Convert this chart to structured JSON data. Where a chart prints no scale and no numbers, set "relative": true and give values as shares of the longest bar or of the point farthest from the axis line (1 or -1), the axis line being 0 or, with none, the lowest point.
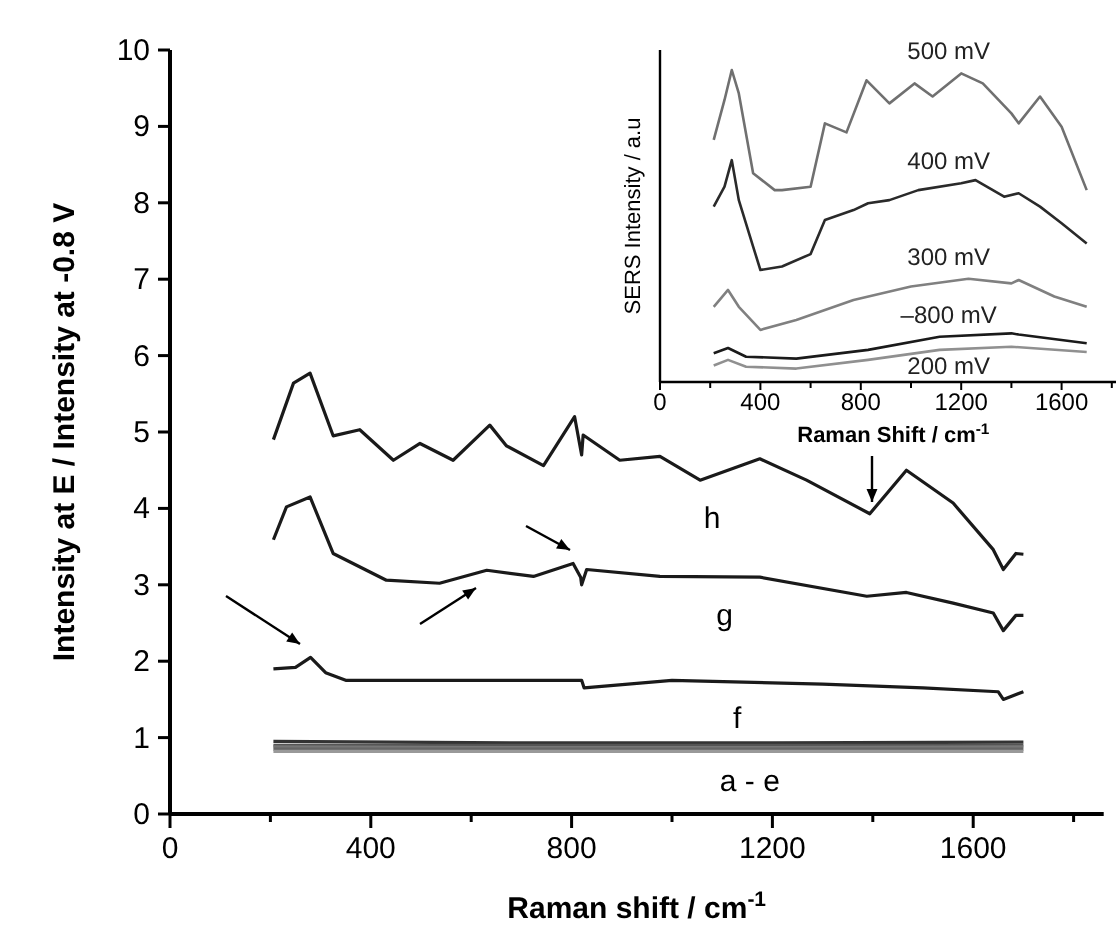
{
  "chart_data": [
    {
      "type": "line",
      "xlabel": "Raman shift / cm$^{-1}$",
      "ylabel": "Intensity at E / Intensity at -0.8 V",
      "xlim": [
        0,
        1860
      ],
      "ylim": [
        0,
        10
      ],
      "xticks": [
        0,
        {
          "value": 200,
          "label": null
        },
        400,
        {
          "value": 600,
          "label": null
        },
        800,
        {
          "value": 1000,
          "label": null
        },
        1200,
        {
          "value": 1400,
          "label": null
        },
        1600,
        {
          "value": 1800,
          "label": null
        }
      ],
      "yticks": [
        0,
        1,
        2,
        3,
        4,
        5,
        6,
        7,
        8,
        9,
        10
      ],
      "grid": false,
      "marker": "none",
      "line_style": "solid",
      "series": [
        {
          "color": "#1a1a1a",
          "x": [
            206,
            246,
            279,
            325,
            378,
            445,
            498,
            564,
            637,
            670,
            744,
            806,
            820,
            823,
            896,
            976,
            1056,
            1175,
            1268,
            1394,
            1467,
            1560,
            1640,
            1660,
            1685,
            1700
          ],
          "values": [
            4.9,
            5.64,
            5.77,
            4.95,
            5.03,
            4.63,
            4.85,
            4.63,
            5.09,
            4.82,
            4.56,
            5.2,
            4.7,
            4.96,
            4.63,
            4.68,
            4.37,
            4.65,
            4.37,
            3.93,
            4.5,
            4.07,
            3.46,
            3.2,
            3.41,
            3.4
          ]
        },
        {
          "color": "#1a1a1a",
          "x": [
            206,
            232,
            279,
            325,
            431,
            537,
            631,
            724,
            803,
            818,
            820,
            830,
            976,
            1175,
            1388,
            1467,
            1560,
            1640,
            1660,
            1685,
            1700
          ],
          "values": [
            3.59,
            4.02,
            4.15,
            3.41,
            3.06,
            3.02,
            3.19,
            3.11,
            3.28,
            3.1,
            3.0,
            3.2,
            3.11,
            3.1,
            2.85,
            2.9,
            2.76,
            2.63,
            2.4,
            2.6,
            2.6
          ]
        },
        {
          "color": "#1a1a1a",
          "x": [
            206,
            250,
            280,
            310,
            350,
            600,
            820,
            825,
            1000,
            1300,
            1500,
            1650,
            1660,
            1700
          ],
          "values": [
            1.9,
            1.92,
            2.05,
            1.85,
            1.75,
            1.75,
            1.75,
            1.65,
            1.75,
            1.7,
            1.65,
            1.6,
            1.5,
            1.6
          ]
        },
        {
          "color": "#333333",
          "x": [
            206,
            700,
            1200,
            1700
          ],
          "values": [
            0.95,
            0.93,
            0.93,
            0.94
          ]
        },
        {
          "color": "#555555",
          "x": [
            206,
            700,
            1200,
            1700
          ],
          "values": [
            0.9,
            0.9,
            0.9,
            0.9
          ]
        },
        {
          "color": "#777777",
          "x": [
            206,
            700,
            1200,
            1700
          ],
          "values": [
            0.88,
            0.87,
            0.87,
            0.88
          ]
        },
        {
          "color": "#666666",
          "x": [
            206,
            700,
            1200,
            1700
          ],
          "values": [
            0.85,
            0.85,
            0.85,
            0.85
          ]
        },
        {
          "color": "#999999",
          "x": [
            206,
            700,
            1200,
            1700
          ],
          "values": [
            0.82,
            0.82,
            0.82,
            0.82
          ]
        }
      ],
      "annotations": [
        "h",
        "g",
        "f",
        "a - e"
      ]
    },
    {
      "type": "line",
      "xlabel": "Raman Shift / cm$^{-1}$",
      "ylabel": "SERS Intensity / a.u",
      "relative": true,
      "xlim": [
        0,
        1930
      ],
      "xticks": [
        0,
        {
          "value": 200,
          "label": null
        },
        400,
        {
          "value": 600,
          "label": null
        },
        800,
        {
          "value": 1000,
          "label": null
        },
        1200,
        {
          "value": 1400,
          "label": null
        },
        1600,
        {
          "value": 1800,
          "label": null
        }
      ],
      "grid": false,
      "marker": "none",
      "line_style": "solid",
      "series": [
        {
          "name": "500 mV",
          "color": "#707070",
          "x": [
            214,
            257,
            286,
            314,
            371,
            457,
            486,
            600,
            657,
            743,
            823,
            914,
            1014,
            1086,
            1200,
            1286,
            1400,
            1429,
            1514,
            1600,
            1700
          ],
          "values": [
            0.776,
            0.904,
            1.0,
            0.925,
            0.669,
            0.615,
            0.615,
            0.626,
            0.829,
            0.8,
            0.967,
            0.893,
            0.957,
            0.915,
            0.989,
            0.957,
            0.861,
            0.829,
            0.915,
            0.818,
            0.615
          ]
        },
        {
          "name": "400 mV",
          "color": "#2a2a2a",
          "x": [
            214,
            257,
            286,
            314,
            371,
            400,
            486,
            600,
            657,
            771,
            829,
            914,
            1029,
            1200,
            1257,
            1371,
            1429,
            1514,
            1600,
            1700
          ],
          "values": [
            0.562,
            0.626,
            0.711,
            0.583,
            0.434,
            0.359,
            0.37,
            0.41,
            0.519,
            0.551,
            0.573,
            0.583,
            0.615,
            0.637,
            0.647,
            0.594,
            0.605,
            0.562,
            0.509,
            0.444
          ]
        },
        {
          "name": "300 mV",
          "color": "#808080",
          "x": [
            214,
            271,
            314,
            400,
            543,
            771,
            1000,
            1229,
            1400,
            1429,
            1571,
            1700
          ],
          "values": [
            0.241,
            0.295,
            0.241,
            0.167,
            0.199,
            0.263,
            0.306,
            0.331,
            0.316,
            0.327,
            0.274,
            0.241
          ]
        },
        {
          "name": "–800 mV",
          "color": "#1a1a1a",
          "x": [
            214,
            271,
            343,
            543,
            829,
            1114,
            1400,
            1429,
            1700
          ],
          "values": [
            0.092,
            0.109,
            0.081,
            0.075,
            0.103,
            0.145,
            0.156,
            0.152,
            0.124
          ]
        },
        {
          "name": "200 mV",
          "color": "#909090",
          "x": [
            214,
            271,
            343,
            543,
            829,
            1114,
            1400,
            1700
          ],
          "values": [
            0.053,
            0.071,
            0.049,
            0.043,
            0.071,
            0.103,
            0.113,
            0.096
          ]
        }
      ]
    }
  ]
}
